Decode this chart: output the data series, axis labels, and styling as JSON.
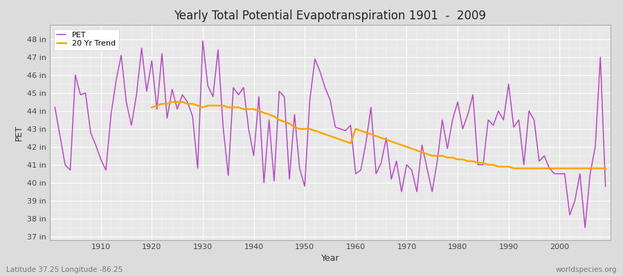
{
  "title": "Yearly Total Potential Evapotranspiration 1901  -  2009",
  "xlabel": "Year",
  "ylabel": "PET",
  "subtitle_left": "Latitude 37.25 Longitude -86.25",
  "subtitle_right": "worldspecies.org",
  "pet_color": "#BB44CC",
  "trend_color": "#FFA500",
  "bg_color": "#DCDCDC",
  "plot_bg_color": "#E8E8E8",
  "ylim": [
    36.8,
    48.8
  ],
  "yticks": [
    37,
    38,
    39,
    40,
    41,
    42,
    43,
    44,
    45,
    46,
    47,
    48
  ],
  "xlim": [
    1900,
    2010
  ],
  "xticks": [
    1910,
    1920,
    1930,
    1940,
    1950,
    1960,
    1970,
    1980,
    1990,
    2000
  ],
  "years": [
    1901,
    1902,
    1903,
    1904,
    1905,
    1906,
    1907,
    1908,
    1909,
    1910,
    1911,
    1912,
    1913,
    1914,
    1915,
    1916,
    1917,
    1918,
    1919,
    1920,
    1921,
    1922,
    1923,
    1924,
    1925,
    1926,
    1927,
    1928,
    1929,
    1930,
    1931,
    1932,
    1933,
    1934,
    1935,
    1936,
    1937,
    1938,
    1939,
    1940,
    1941,
    1942,
    1943,
    1944,
    1945,
    1946,
    1947,
    1948,
    1949,
    1950,
    1951,
    1952,
    1953,
    1954,
    1955,
    1956,
    1957,
    1958,
    1959,
    1960,
    1961,
    1962,
    1963,
    1964,
    1965,
    1966,
    1967,
    1968,
    1969,
    1970,
    1971,
    1972,
    1973,
    1974,
    1975,
    1976,
    1977,
    1978,
    1979,
    1980,
    1981,
    1982,
    1983,
    1984,
    1985,
    1986,
    1987,
    1988,
    1989,
    1990,
    1991,
    1992,
    1993,
    1994,
    1995,
    1996,
    1997,
    1998,
    1999,
    2000,
    2001,
    2002,
    2003,
    2004,
    2005,
    2006,
    2007,
    2008,
    2009
  ],
  "pet_values": [
    44.2,
    42.6,
    41.0,
    40.7,
    46.0,
    44.9,
    45.0,
    42.8,
    42.1,
    41.3,
    40.7,
    43.8,
    45.7,
    47.1,
    44.5,
    43.2,
    44.9,
    47.5,
    45.1,
    46.8,
    44.1,
    47.2,
    43.6,
    45.2,
    44.1,
    44.9,
    44.5,
    43.7,
    40.8,
    47.9,
    45.4,
    44.8,
    47.4,
    43.1,
    40.4,
    45.3,
    44.9,
    45.3,
    43.0,
    41.5,
    44.8,
    40.0,
    43.5,
    40.1,
    45.1,
    44.8,
    40.2,
    43.8,
    40.8,
    39.8,
    44.6,
    46.9,
    46.2,
    45.3,
    44.6,
    43.1,
    43.0,
    42.9,
    43.2,
    40.5,
    40.7,
    42.2,
    44.2,
    40.5,
    41.1,
    42.5,
    40.2,
    41.2,
    39.5,
    41.0,
    40.7,
    39.5,
    42.1,
    40.8,
    39.5,
    41.2,
    43.5,
    41.9,
    43.5,
    44.5,
    43.0,
    43.8,
    44.9,
    41.0,
    41.0,
    43.5,
    43.2,
    44.0,
    43.5,
    45.5,
    43.1,
    43.5,
    41.0,
    44.0,
    43.5,
    41.2,
    41.5,
    40.8,
    40.5,
    40.5,
    40.5,
    38.2,
    39.0,
    40.5,
    37.5,
    40.5,
    42.0,
    47.0,
    39.8
  ],
  "trend_values": [
    null,
    null,
    null,
    null,
    null,
    null,
    null,
    null,
    null,
    null,
    null,
    null,
    null,
    null,
    null,
    null,
    null,
    null,
    null,
    44.2,
    44.3,
    44.4,
    44.4,
    44.5,
    44.5,
    44.5,
    44.4,
    44.4,
    44.3,
    44.2,
    44.3,
    44.3,
    44.3,
    44.3,
    44.2,
    44.2,
    44.2,
    44.1,
    44.1,
    44.1,
    44.0,
    43.9,
    43.8,
    43.7,
    43.5,
    43.4,
    43.3,
    43.1,
    43.0,
    43.0,
    43.0,
    42.9,
    42.8,
    42.7,
    42.6,
    42.5,
    42.4,
    42.3,
    42.2,
    43.0,
    42.9,
    42.8,
    42.7,
    42.6,
    42.5,
    42.4,
    42.3,
    42.2,
    42.1,
    42.0,
    41.9,
    41.8,
    41.7,
    41.6,
    41.5,
    41.5,
    41.5,
    41.4,
    41.4,
    41.3,
    41.3,
    41.2,
    41.2,
    41.1,
    41.1,
    41.0,
    41.0,
    40.9,
    40.9,
    40.9,
    40.8,
    40.8,
    40.8,
    40.8,
    40.8,
    40.8,
    40.8,
    40.8,
    40.8,
    40.8,
    40.8,
    40.8,
    40.8,
    40.8,
    40.8,
    40.8,
    40.8,
    40.8,
    40.8
  ]
}
